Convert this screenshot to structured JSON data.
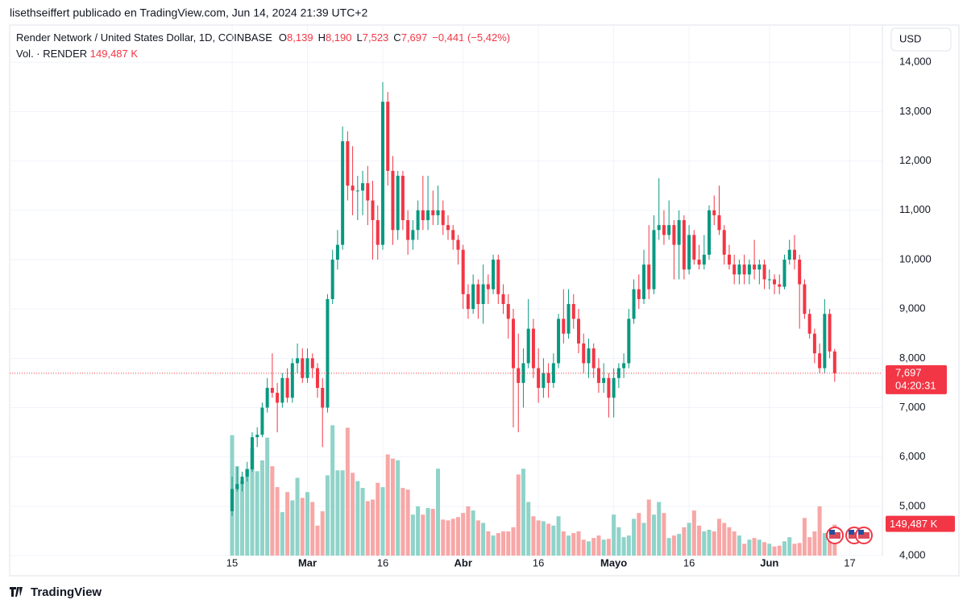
{
  "header": "lisethseiffert publicado en TradingView.com, Jun 14, 2024 21:39 UTC+2",
  "footer": "TradingView",
  "chart_data": {
    "type": "candlestick",
    "symbol": "Render Network / United States Dollar, 1D, COINBASE",
    "ohlc_legend": [
      {
        "key": "O",
        "value": "8,139"
      },
      {
        "key": "H",
        "value": "8,190"
      },
      {
        "key": "L",
        "value": "7,523"
      },
      {
        "key": "C",
        "value": "7,697"
      }
    ],
    "change": "−0,441 (−5,42%)",
    "volume_legend": {
      "name": "Vol. · RENDER",
      "value": "149,487 K"
    },
    "currency": "USD",
    "last_price": {
      "value": 7.697,
      "label": "7,697"
    },
    "countdown": "04:20:31",
    "last_volume": {
      "value": 149.487,
      "label": "149,487 K"
    },
    "up_color": "#089981",
    "down_color": "#f23645",
    "volume_up_color": "#8fd3c9",
    "volume_down_color": "#f7a7a6",
    "grid": true,
    "ylim": [
      4,
      14.25
    ],
    "yticks": [
      {
        "value": 4,
        "label": "4,000"
      },
      {
        "value": 5,
        "label": "5,000"
      },
      {
        "value": 6,
        "label": "6,000"
      },
      {
        "value": 7,
        "label": "7,000"
      },
      {
        "value": 8,
        "label": "8,000"
      },
      {
        "value": 9,
        "label": "9,000"
      },
      {
        "value": 10,
        "label": "10,000"
      },
      {
        "value": 11,
        "label": "11,000"
      },
      {
        "value": 12,
        "label": "12,000"
      },
      {
        "value": 13,
        "label": "13,000"
      },
      {
        "value": 14,
        "label": "14,000"
      }
    ],
    "vlim": [
      0,
      2444
    ],
    "xlim": [
      -44.3,
      129.5
    ],
    "xticks": [
      {
        "value": 0,
        "label": "15"
      },
      {
        "value": 15,
        "label": "Mar"
      },
      {
        "value": 30,
        "label": "16"
      },
      {
        "value": 46,
        "label": "Abr"
      },
      {
        "value": 61,
        "label": "16"
      },
      {
        "value": 76,
        "label": "Mayo"
      },
      {
        "value": 91,
        "label": "16"
      },
      {
        "value": 107,
        "label": "Jun"
      },
      {
        "value": 123,
        "label": "17"
      }
    ],
    "x": [
      0,
      1,
      2,
      3,
      4,
      5,
      6,
      7,
      8,
      9,
      10,
      11,
      12,
      13,
      14,
      15,
      16,
      17,
      18,
      19,
      20,
      21,
      22,
      23,
      24,
      25,
      26,
      27,
      28,
      29,
      30,
      31,
      32,
      33,
      34,
      35,
      36,
      37,
      38,
      39,
      40,
      41,
      42,
      43,
      44,
      45,
      46,
      47,
      48,
      49,
      50,
      51,
      52,
      53,
      54,
      55,
      56,
      57,
      58,
      59,
      60,
      61,
      62,
      63,
      64,
      65,
      66,
      67,
      68,
      69,
      70,
      71,
      72,
      73,
      74,
      75,
      76,
      77,
      78,
      79,
      80,
      81,
      82,
      83,
      84,
      85,
      86,
      87,
      88,
      89,
      90,
      91,
      92,
      93,
      94,
      95,
      96,
      97,
      98,
      99,
      100,
      101,
      102,
      103,
      104,
      105,
      106,
      107,
      108,
      109,
      110,
      111,
      112,
      113,
      114,
      115,
      116,
      117,
      118,
      119,
      120
    ],
    "ohlc": [
      [
        4.9,
        5.6,
        4.8,
        5.35
      ],
      [
        5.35,
        5.8,
        5.3,
        5.45
      ],
      [
        5.45,
        5.7,
        5.3,
        5.6
      ],
      [
        5.6,
        5.9,
        5.5,
        5.75
      ],
      [
        5.75,
        6.5,
        5.7,
        6.4
      ],
      [
        6.4,
        6.6,
        6.2,
        6.45
      ],
      [
        6.45,
        7.1,
        6.4,
        7.0
      ],
      [
        7.0,
        7.6,
        6.9,
        7.4
      ],
      [
        7.4,
        8.1,
        7.2,
        7.3
      ],
      [
        7.3,
        7.5,
        6.5,
        7.1
      ],
      [
        7.1,
        7.7,
        7.0,
        7.6
      ],
      [
        7.6,
        7.8,
        7.1,
        7.2
      ],
      [
        7.2,
        8.0,
        7.1,
        7.9
      ],
      [
        7.9,
        8.3,
        7.7,
        8.0
      ],
      [
        8.0,
        8.2,
        7.5,
        7.6
      ],
      [
        7.6,
        8.2,
        7.5,
        8.0
      ],
      [
        8.0,
        8.1,
        7.6,
        7.8
      ],
      [
        7.8,
        7.9,
        7.2,
        7.4
      ],
      [
        7.4,
        7.6,
        6.2,
        7.0
      ],
      [
        7.0,
        9.3,
        6.9,
        9.2
      ],
      [
        9.2,
        10.2,
        9.1,
        10.0
      ],
      [
        10.0,
        10.6,
        9.8,
        10.3
      ],
      [
        10.3,
        12.7,
        10.2,
        12.4
      ],
      [
        12.4,
        12.6,
        11.2,
        11.5
      ],
      [
        11.5,
        12.3,
        10.9,
        11.4
      ],
      [
        11.4,
        11.7,
        10.8,
        11.4
      ],
      [
        11.4,
        11.8,
        10.9,
        11.55
      ],
      [
        11.55,
        11.9,
        10.7,
        11.2
      ],
      [
        11.2,
        11.6,
        10.0,
        10.8
      ],
      [
        10.8,
        11.1,
        10.0,
        10.3
      ],
      [
        10.3,
        13.6,
        10.2,
        13.2
      ],
      [
        13.2,
        13.4,
        11.5,
        11.8
      ],
      [
        11.8,
        12.1,
        10.3,
        10.6
      ],
      [
        10.6,
        11.8,
        10.4,
        11.7
      ],
      [
        11.7,
        11.8,
        10.6,
        10.8
      ],
      [
        10.8,
        11.0,
        10.1,
        10.4
      ],
      [
        10.4,
        10.8,
        10.2,
        10.6
      ],
      [
        10.6,
        11.2,
        10.4,
        11.0
      ],
      [
        11.0,
        11.7,
        10.6,
        10.8
      ],
      [
        10.8,
        11.7,
        10.6,
        11.0
      ],
      [
        11.0,
        11.4,
        10.7,
        10.9
      ],
      [
        10.9,
        11.5,
        10.7,
        11.0
      ],
      [
        11.0,
        11.2,
        10.5,
        10.7
      ],
      [
        10.7,
        10.9,
        10.4,
        10.6
      ],
      [
        10.6,
        10.7,
        10.2,
        10.4
      ],
      [
        10.4,
        10.5,
        9.9,
        10.2
      ],
      [
        10.2,
        10.3,
        9.0,
        9.3
      ],
      [
        9.3,
        9.5,
        8.8,
        9.0
      ],
      [
        9.0,
        9.7,
        8.9,
        9.5
      ],
      [
        9.5,
        9.6,
        8.8,
        9.1
      ],
      [
        9.1,
        9.9,
        8.7,
        9.5
      ],
      [
        9.5,
        9.7,
        9.1,
        9.4
      ],
      [
        9.4,
        10.1,
        9.3,
        10.0
      ],
      [
        10.0,
        10.1,
        9.1,
        9.3
      ],
      [
        9.3,
        9.5,
        8.9,
        9.1
      ],
      [
        9.1,
        9.3,
        8.4,
        8.8
      ],
      [
        8.8,
        9.0,
        6.6,
        7.8
      ],
      [
        7.8,
        8.5,
        6.5,
        7.5
      ],
      [
        7.5,
        8.2,
        7.0,
        7.9
      ],
      [
        7.9,
        9.2,
        7.8,
        8.6
      ],
      [
        8.6,
        8.8,
        7.6,
        7.8
      ],
      [
        7.8,
        8.2,
        7.1,
        7.4
      ],
      [
        7.4,
        8.0,
        7.2,
        7.7
      ],
      [
        7.7,
        7.9,
        7.2,
        7.5
      ],
      [
        7.5,
        8.1,
        7.4,
        7.9
      ],
      [
        7.9,
        8.9,
        7.8,
        8.8
      ],
      [
        8.8,
        9.4,
        8.3,
        8.5
      ],
      [
        8.5,
        9.4,
        8.4,
        9.1
      ],
      [
        9.1,
        9.3,
        8.6,
        8.8
      ],
      [
        8.8,
        9.0,
        8.1,
        8.3
      ],
      [
        8.3,
        8.5,
        7.7,
        7.9
      ],
      [
        7.9,
        8.4,
        7.6,
        8.2
      ],
      [
        8.2,
        8.3,
        7.6,
        7.8
      ],
      [
        7.8,
        8.0,
        7.3,
        7.5
      ],
      [
        7.5,
        7.9,
        7.3,
        7.6
      ],
      [
        7.6,
        7.7,
        6.8,
        7.2
      ],
      [
        7.2,
        7.8,
        6.8,
        7.6
      ],
      [
        7.6,
        7.9,
        7.4,
        7.8
      ],
      [
        7.8,
        8.1,
        7.6,
        7.9
      ],
      [
        7.9,
        9.0,
        7.8,
        8.8
      ],
      [
        8.8,
        9.6,
        8.7,
        9.4
      ],
      [
        9.4,
        9.7,
        9.0,
        9.2
      ],
      [
        9.2,
        10.2,
        9.1,
        9.9
      ],
      [
        9.9,
        10.7,
        9.2,
        9.4
      ],
      [
        9.4,
        10.9,
        9.3,
        10.6
      ],
      [
        10.6,
        11.65,
        10.4,
        10.7
      ],
      [
        10.7,
        11.0,
        10.3,
        10.5
      ],
      [
        10.5,
        11.2,
        10.4,
        10.7
      ],
      [
        10.7,
        10.8,
        9.6,
        10.3
      ],
      [
        10.3,
        11.0,
        9.6,
        10.8
      ],
      [
        10.8,
        10.9,
        9.6,
        9.8
      ],
      [
        9.8,
        10.7,
        9.7,
        10.5
      ],
      [
        10.5,
        10.6,
        9.9,
        10.0
      ],
      [
        10.0,
        10.3,
        9.8,
        9.9
      ],
      [
        9.9,
        10.5,
        9.8,
        10.1
      ],
      [
        10.1,
        11.1,
        10.0,
        11.0
      ],
      [
        11.0,
        11.3,
        10.7,
        10.9
      ],
      [
        10.9,
        11.5,
        10.5,
        10.6
      ],
      [
        10.6,
        10.7,
        9.9,
        10.1
      ],
      [
        10.1,
        10.3,
        9.8,
        9.9
      ],
      [
        9.9,
        10.1,
        9.5,
        9.7
      ],
      [
        9.7,
        10.0,
        9.5,
        9.9
      ],
      [
        9.9,
        10.1,
        9.5,
        9.7
      ],
      [
        9.7,
        10.0,
        9.5,
        9.9
      ],
      [
        9.9,
        10.4,
        9.6,
        9.8
      ],
      [
        9.8,
        10.0,
        9.5,
        9.9
      ],
      [
        9.9,
        10.0,
        9.4,
        9.6
      ],
      [
        9.6,
        9.8,
        9.4,
        9.6
      ],
      [
        9.6,
        9.7,
        9.3,
        9.5
      ],
      [
        9.5,
        9.7,
        9.3,
        9.45
      ],
      [
        9.45,
        10.1,
        9.4,
        10.0
      ],
      [
        10.0,
        10.4,
        9.9,
        10.2
      ],
      [
        10.2,
        10.5,
        9.8,
        10.0
      ],
      [
        10.0,
        10.1,
        8.6,
        9.5
      ],
      [
        9.5,
        9.6,
        8.8,
        8.9
      ],
      [
        8.9,
        9.0,
        8.4,
        8.5
      ],
      [
        8.5,
        8.6,
        7.9,
        8.1
      ],
      [
        8.1,
        8.3,
        7.7,
        7.8
      ],
      [
        7.8,
        9.2,
        7.7,
        8.9
      ],
      [
        8.9,
        9.0,
        8.0,
        8.139
      ],
      [
        8.139,
        8.19,
        7.523,
        7.697
      ]
    ],
    "volumes": [
      582,
      432,
      360,
      420,
      521,
      408,
      460,
      570,
      432,
      331,
      210,
      307,
      267,
      376,
      279,
      307,
      259,
      145,
      214,
      388,
      630,
      412,
      412,
      618,
      400,
      360,
      327,
      263,
      271,
      352,
      331,
      489,
      469,
      461,
      327,
      319,
      198,
      238,
      198,
      230,
      226,
      420,
      174,
      170,
      178,
      186,
      206,
      238,
      218,
      170,
      158,
      117,
      97,
      109,
      117,
      117,
      137,
      392,
      420,
      259,
      190,
      170,
      166,
      154,
      145,
      190,
      117,
      97,
      109,
      117,
      77,
      69,
      85,
      97,
      77,
      81,
      198,
      137,
      89,
      97,
      178,
      206,
      158,
      271,
      198,
      259,
      206,
      85,
      97,
      105,
      137,
      158,
      218,
      145,
      117,
      125,
      117,
      178,
      158,
      137,
      117,
      97,
      57,
      77,
      85,
      77,
      65,
      57,
      44,
      48,
      69,
      89,
      57,
      61,
      182,
      89,
      117,
      238,
      109,
      97,
      149.487
    ]
  }
}
